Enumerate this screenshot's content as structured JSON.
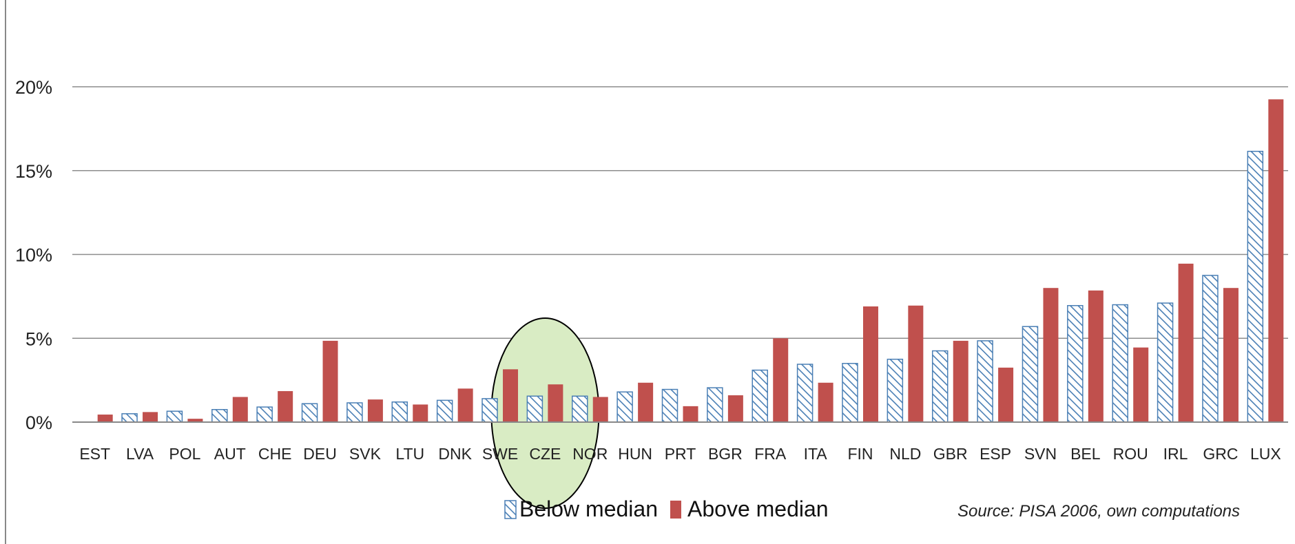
{
  "chart_data": {
    "type": "bar",
    "title": "",
    "xlabel": "",
    "ylabel": "",
    "ylim": [
      0,
      0.2
    ],
    "yticks": [
      {
        "value": 0.0,
        "label": "0%"
      },
      {
        "value": 0.05,
        "label": "5%"
      },
      {
        "value": 0.1,
        "label": "10%"
      },
      {
        "value": 0.15,
        "label": "15%"
      },
      {
        "value": 0.2,
        "label": "20%"
      }
    ],
    "grid": true,
    "legend_position": "bottom",
    "categories": [
      "EST",
      "LVA",
      "POL",
      "AUT",
      "CHE",
      "DEU",
      "SVK",
      "LTU",
      "DNK",
      "SWE",
      "CZE",
      "NOR",
      "HUN",
      "PRT",
      "BGR",
      "FRA",
      "ITA",
      "FIN",
      "NLD",
      "GBR",
      "ESP",
      "SVN",
      "BEL",
      "ROU",
      "IRL",
      "GRC",
      "LUX"
    ],
    "series": [
      {
        "name": "Below median",
        "style": "hatched",
        "color": "#4a7fb5",
        "values": [
          0.0,
          0.005,
          0.0065,
          0.0075,
          0.009,
          0.011,
          0.0115,
          0.012,
          0.013,
          0.014,
          0.0155,
          0.0155,
          0.018,
          0.0195,
          0.0205,
          0.031,
          0.0345,
          0.035,
          0.0375,
          0.0425,
          0.0485,
          0.057,
          0.0695,
          0.07,
          0.071,
          0.0875,
          0.1615
        ]
      },
      {
        "name": "Above median",
        "style": "solid",
        "color": "#c0504d",
        "values": [
          0.0045,
          0.006,
          0.002,
          0.015,
          0.0185,
          0.0485,
          0.0135,
          0.0105,
          0.02,
          0.0315,
          0.0225,
          0.015,
          0.0235,
          0.0095,
          0.016,
          0.05,
          0.0235,
          0.069,
          0.0695,
          0.0485,
          0.0325,
          0.08,
          0.0785,
          0.0445,
          0.0945,
          0.08,
          0.1925
        ]
      }
    ],
    "highlight": {
      "categories": [
        "SWE",
        "CZE",
        "NOR"
      ],
      "fill": "#d9ecc4",
      "stroke": "#000000"
    },
    "source_note": "Source: PISA 2006, own computations"
  }
}
